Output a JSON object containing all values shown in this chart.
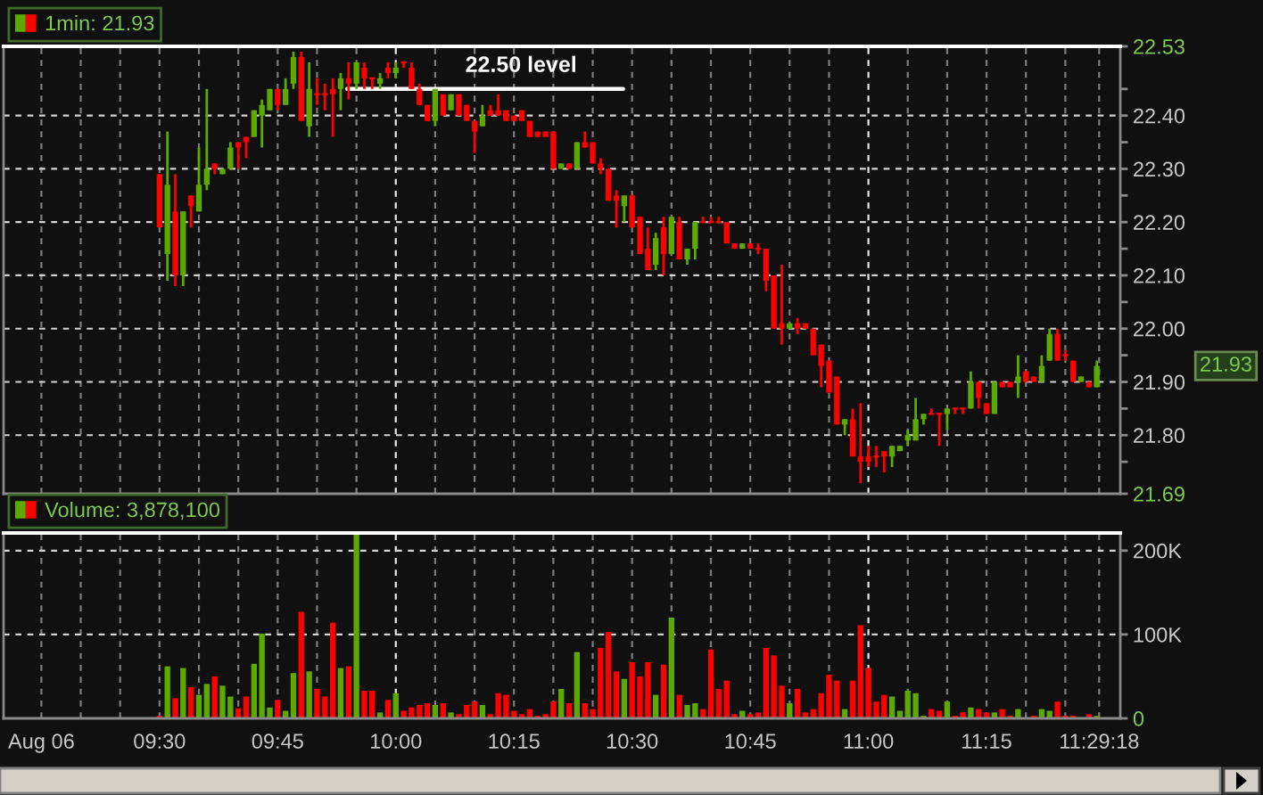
{
  "chart_data": [
    {
      "type": "candlestick",
      "x": [
        9.5,
        9.5167,
        9.5333,
        9.55,
        9.5667,
        9.5833,
        9.6,
        9.6167,
        9.6333,
        9.65,
        9.6667,
        9.6833,
        9.7,
        9.7167,
        9.7333,
        9.75,
        9.7667,
        9.7833,
        9.8,
        9.8167,
        9.8333,
        9.85,
        9.8667,
        9.8833,
        9.9,
        9.9167,
        9.9333,
        9.95,
        9.9667,
        9.9833,
        10,
        10.0167,
        10.0333,
        10.05,
        10.0667,
        10.0833,
        10.1,
        10.1167,
        10.1333,
        10.15,
        10.1667,
        10.1833,
        10.2,
        10.2167,
        10.2333,
        10.25,
        10.2667,
        10.2833,
        10.3,
        10.3167,
        10.3333,
        10.35,
        10.3667,
        10.3833,
        10.4,
        10.4167,
        10.4333,
        10.45,
        10.4667,
        10.4833,
        10.5,
        10.5167,
        10.5333,
        10.55,
        10.5667,
        10.5833,
        10.6,
        10.6167,
        10.6333,
        10.65,
        10.6667,
        10.6833,
        10.7,
        10.7167,
        10.7333,
        10.75,
        10.7667,
        10.7833,
        10.8,
        10.8167,
        10.8333,
        10.85,
        10.8667,
        10.8833,
        10.9,
        10.9167,
        10.9333,
        10.95,
        10.9667,
        10.9833,
        11,
        11.0167,
        11.0333,
        11.05,
        11.0667,
        11.0833,
        11.1,
        11.1167,
        11.1333,
        11.15,
        11.1667,
        11.1833,
        11.2,
        11.2167,
        11.2333,
        11.25,
        11.2667,
        11.2833,
        11.3,
        11.3167,
        11.3333,
        11.35,
        11.3667,
        11.3833,
        11.4,
        11.4167,
        11.4333,
        11.45,
        11.4667,
        11.4833
      ],
      "series": [
        {
          "name": "1min: 21.93",
          "type": "candlestick",
          "ohlc": [
            [
              22.29,
              22.29,
              22.19,
              22.19
            ],
            [
              22.14,
              22.37,
              22.09,
              22.27
            ],
            [
              22.22,
              22.29,
              22.08,
              22.1
            ],
            [
              22.1,
              22.22,
              22.08,
              22.22
            ],
            [
              22.25,
              22.25,
              22.19,
              22.23
            ],
            [
              22.22,
              22.34,
              22.22,
              22.27
            ],
            [
              22.27,
              22.45,
              22.26,
              22.3
            ],
            [
              22.31,
              22.31,
              22.29,
              22.3
            ],
            [
              22.29,
              22.3,
              22.29,
              22.3
            ],
            [
              22.3,
              22.35,
              22.3,
              22.34
            ],
            [
              22.35,
              22.35,
              22.3,
              22.34
            ],
            [
              22.36,
              22.36,
              22.32,
              22.35
            ],
            [
              22.36,
              22.41,
              22.36,
              22.41
            ],
            [
              22.4,
              22.43,
              22.34,
              22.42
            ],
            [
              22.41,
              22.45,
              22.41,
              22.45
            ],
            [
              22.45,
              22.45,
              22.41,
              22.42
            ],
            [
              22.42,
              22.47,
              22.42,
              22.45
            ],
            [
              22.46,
              22.52,
              22.45,
              22.51
            ],
            [
              22.51,
              22.52,
              22.39,
              22.39
            ],
            [
              22.38,
              22.5,
              22.36,
              22.45
            ],
            [
              22.44,
              22.47,
              22.42,
              22.44
            ],
            [
              22.44,
              22.46,
              22.41,
              22.44
            ],
            [
              22.45,
              22.47,
              22.36,
              22.44
            ],
            [
              22.45,
              22.48,
              22.41,
              22.47
            ],
            [
              22.47,
              22.5,
              22.43,
              22.46
            ],
            [
              22.46,
              22.5,
              22.45,
              22.5
            ],
            [
              22.49,
              22.5,
              22.45,
              22.47
            ],
            [
              22.47,
              22.47,
              22.45,
              22.47
            ],
            [
              22.46,
              22.48,
              22.45,
              22.47
            ],
            [
              22.49,
              22.5,
              22.47,
              22.48
            ],
            [
              22.48,
              22.5,
              22.47,
              22.49
            ],
            [
              22.5,
              22.5,
              22.49,
              22.5
            ],
            [
              22.49,
              22.5,
              22.45,
              22.45
            ],
            [
              22.45,
              22.46,
              22.42,
              22.42
            ],
            [
              22.42,
              22.42,
              22.39,
              22.39
            ],
            [
              22.39,
              22.45,
              22.38,
              22.45
            ],
            [
              22.44,
              22.44,
              22.4,
              22.4
            ],
            [
              22.41,
              22.44,
              22.41,
              22.44
            ],
            [
              22.44,
              22.44,
              22.4,
              22.4
            ],
            [
              22.42,
              22.42,
              22.39,
              22.39
            ],
            [
              22.39,
              22.39,
              22.33,
              22.37
            ],
            [
              22.38,
              22.42,
              22.38,
              22.4
            ],
            [
              22.41,
              22.42,
              22.4,
              22.4
            ],
            [
              22.41,
              22.44,
              22.4,
              22.4
            ],
            [
              22.41,
              22.41,
              22.39,
              22.39
            ],
            [
              22.4,
              22.4,
              22.39,
              22.39
            ],
            [
              22.41,
              22.41,
              22.39,
              22.39
            ],
            [
              22.39,
              22.39,
              22.36,
              22.36
            ],
            [
              22.37,
              22.37,
              22.36,
              22.36
            ],
            [
              22.37,
              22.37,
              22.36,
              22.36
            ],
            [
              22.37,
              22.37,
              22.3,
              22.3
            ],
            [
              22.3,
              22.31,
              22.3,
              22.31
            ],
            [
              22.31,
              22.31,
              22.3,
              22.3
            ],
            [
              22.3,
              22.35,
              22.3,
              22.35
            ],
            [
              22.35,
              22.37,
              22.34,
              22.34
            ],
            [
              22.35,
              22.35,
              22.31,
              22.31
            ],
            [
              22.31,
              22.32,
              22.29,
              22.3
            ],
            [
              22.3,
              22.3,
              22.24,
              22.24
            ],
            [
              22.25,
              22.26,
              22.19,
              22.24
            ],
            [
              22.23,
              22.25,
              22.2,
              22.25
            ],
            [
              22.25,
              22.25,
              22.19,
              22.19
            ],
            [
              22.21,
              22.21,
              22.14,
              22.14
            ],
            [
              22.15,
              22.19,
              22.11,
              22.11
            ],
            [
              22.12,
              22.18,
              22.11,
              22.17
            ],
            [
              22.19,
              22.21,
              22.1,
              22.14
            ],
            [
              22.14,
              22.21,
              22.14,
              22.21
            ],
            [
              22.2,
              22.21,
              22.13,
              22.13
            ],
            [
              22.13,
              22.15,
              22.12,
              22.15
            ],
            [
              22.15,
              22.2,
              22.13,
              22.2
            ],
            [
              22.2,
              22.21,
              22.2,
              22.2
            ],
            [
              22.2,
              22.21,
              22.2,
              22.2
            ],
            [
              22.2,
              22.21,
              22.2,
              22.2
            ],
            [
              22.2,
              22.2,
              22.16,
              22.16
            ],
            [
              22.16,
              22.16,
              22.15,
              22.15
            ],
            [
              22.15,
              22.16,
              22.15,
              22.16
            ],
            [
              22.16,
              22.16,
              22.15,
              22.15
            ],
            [
              22.15,
              22.16,
              22.14,
              22.15
            ],
            [
              22.15,
              22.15,
              22.07,
              22.09
            ],
            [
              22.1,
              22.1,
              22.0,
              22.0
            ],
            [
              22.01,
              22.12,
              21.97,
              22.0
            ],
            [
              22.0,
              22.01,
              22.0,
              22.01
            ],
            [
              22.01,
              22.02,
              21.99,
              22.0
            ],
            [
              22.01,
              22.01,
              22.0,
              22.0
            ],
            [
              22.0,
              22.0,
              21.95,
              21.95
            ],
            [
              21.97,
              21.97,
              21.89,
              21.93
            ],
            [
              21.94,
              21.94,
              21.88,
              21.88
            ],
            [
              21.91,
              21.91,
              21.82,
              21.82
            ],
            [
              21.82,
              21.83,
              21.8,
              21.83
            ],
            [
              21.83,
              21.85,
              21.76,
              21.76
            ],
            [
              21.76,
              21.86,
              21.71,
              21.75
            ],
            [
              21.76,
              21.78,
              21.74,
              21.75
            ],
            [
              21.76,
              21.78,
              21.74,
              21.76
            ],
            [
              21.77,
              21.77,
              21.73,
              21.76
            ],
            [
              21.76,
              21.78,
              21.74,
              21.78
            ],
            [
              21.77,
              21.78,
              21.77,
              21.78
            ],
            [
              21.79,
              21.81,
              21.78,
              21.8
            ],
            [
              21.79,
              21.87,
              21.79,
              21.83
            ],
            [
              21.83,
              21.84,
              21.82,
              21.84
            ],
            [
              21.84,
              21.85,
              21.84,
              21.84
            ],
            [
              21.84,
              21.84,
              21.78,
              21.84
            ],
            [
              21.84,
              21.85,
              21.81,
              21.85
            ],
            [
              21.85,
              21.85,
              21.84,
              21.85
            ],
            [
              21.85,
              21.85,
              21.84,
              21.85
            ],
            [
              21.85,
              21.92,
              21.85,
              21.9
            ],
            [
              21.9,
              21.9,
              21.85,
              21.87
            ],
            [
              21.86,
              21.86,
              21.84,
              21.84
            ],
            [
              21.84,
              21.9,
              21.84,
              21.9
            ],
            [
              21.9,
              21.9,
              21.89,
              21.89
            ],
            [
              21.9,
              21.9,
              21.89,
              21.89
            ],
            [
              21.9,
              21.95,
              21.87,
              21.91
            ],
            [
              21.92,
              21.92,
              21.9,
              21.9
            ],
            [
              21.91,
              21.91,
              21.9,
              21.9
            ],
            [
              21.9,
              21.95,
              21.9,
              21.93
            ],
            [
              21.94,
              22.0,
              21.94,
              21.99
            ],
            [
              21.99,
              22.0,
              21.94,
              21.94
            ],
            [
              21.95,
              21.96,
              21.94,
              21.95
            ],
            [
              21.94,
              21.94,
              21.9,
              21.9
            ],
            [
              21.9,
              21.91,
              21.9,
              21.91
            ],
            [
              21.9,
              21.9,
              21.89,
              21.89
            ],
            [
              21.89,
              21.94,
              21.89,
              21.93
            ]
          ],
          "colors": [
            "#ff0000",
            "#5caa00",
            "#ff0000",
            "#5caa00",
            "#ff0000",
            "#5caa00",
            "#5caa00",
            "#ff0000",
            "#5caa00",
            "#5caa00",
            "#ff0000",
            "#ff0000",
            "#5caa00",
            "#5caa00",
            "#5caa00",
            "#ff0000",
            "#5caa00",
            "#5caa00",
            "#ff0000",
            "#5caa00",
            "#ff0000",
            "#ff0000",
            "#ff0000",
            "#5caa00",
            "#ff0000",
            "#5caa00",
            "#ff0000",
            "#ff0000",
            "#5caa00",
            "#ff0000",
            "#5caa00",
            "#ff0000",
            "#ff0000",
            "#ff0000",
            "#ff0000",
            "#5caa00",
            "#ff0000",
            "#5caa00",
            "#ff0000",
            "#ff0000",
            "#ff0000",
            "#5caa00",
            "#ff0000",
            "#ff0000",
            "#ff0000",
            "#ff0000",
            "#ff0000",
            "#ff0000",
            "#ff0000",
            "#ff0000",
            "#ff0000",
            "#5caa00",
            "#ff0000",
            "#5caa00",
            "#ff0000",
            "#ff0000",
            "#ff0000",
            "#ff0000",
            "#ff0000",
            "#5caa00",
            "#ff0000",
            "#ff0000",
            "#ff0000",
            "#5caa00",
            "#ff0000",
            "#5caa00",
            "#ff0000",
            "#5caa00",
            "#5caa00",
            "#ff0000",
            "#ff0000",
            "#ff0000",
            "#ff0000",
            "#ff0000",
            "#5caa00",
            "#ff0000",
            "#ff0000",
            "#ff0000",
            "#ff0000",
            "#ff0000",
            "#5caa00",
            "#ff0000",
            "#ff0000",
            "#ff0000",
            "#ff0000",
            "#ff0000",
            "#ff0000",
            "#5caa00",
            "#ff0000",
            "#ff0000",
            "#ff0000",
            "#ff0000",
            "#ff0000",
            "#5caa00",
            "#5caa00",
            "#5caa00",
            "#5caa00",
            "#5caa00",
            "#ff0000",
            "#ff0000",
            "#5caa00",
            "#ff0000",
            "#ff0000",
            "#5caa00",
            "#ff0000",
            "#ff0000",
            "#5caa00",
            "#ff0000",
            "#ff0000",
            "#5caa00",
            "#ff0000",
            "#ff0000",
            "#5caa00",
            "#5caa00",
            "#ff0000",
            "#ff0000",
            "#ff0000",
            "#5caa00",
            "#ff0000",
            "#5caa00"
          ]
        },
        {
          "type": "line",
          "x": [
            9.897,
            10.481
          ],
          "values": [
            22.45,
            22.45
          ],
          "color": "#ffffff"
        }
      ],
      "xlim": [
        9.17,
        11.533
      ],
      "ylim": [
        21.69,
        22.53
      ],
      "xticks": [
        {
          "value": 9.25,
          "label": null
        },
        {
          "value": 9.3333,
          "label": null
        },
        {
          "value": 9.4167,
          "label": null
        },
        {
          "value": 9.5,
          "label": null
        },
        {
          "value": 9.5833,
          "label": null
        },
        {
          "value": 9.6667,
          "label": null
        },
        {
          "value": 9.75,
          "label": null
        },
        {
          "value": 9.8333,
          "label": null
        },
        {
          "value": 9.9167,
          "label": null
        },
        {
          "value": 10,
          "label": null
        },
        {
          "value": 10.0833,
          "label": null
        },
        {
          "value": 10.1667,
          "label": null
        },
        {
          "value": 10.25,
          "label": null
        },
        {
          "value": 10.3333,
          "label": null
        },
        {
          "value": 10.4167,
          "label": null
        },
        {
          "value": 10.5,
          "label": null
        },
        {
          "value": 10.5833,
          "label": null
        },
        {
          "value": 10.6667,
          "label": null
        },
        {
          "value": 10.75,
          "label": null
        },
        {
          "value": 10.8333,
          "label": null
        },
        {
          "value": 10.9167,
          "label": null
        },
        {
          "value": 11,
          "label": null
        },
        {
          "value": 11.0833,
          "label": null
        },
        {
          "value": 11.1667,
          "label": null
        },
        {
          "value": 11.25,
          "label": null
        },
        {
          "value": 11.3333,
          "label": null
        },
        {
          "value": 11.4167,
          "label": null
        },
        {
          "value": 11.4883,
          "label": null
        }
      ],
      "yticks": [
        22.53,
        {
          "value": 22.45,
          "label": null
        },
        {
          "value": 22.4,
          "label": "22.40"
        },
        {
          "value": 22.35,
          "label": null
        },
        {
          "value": 22.3,
          "label": "22.30"
        },
        {
          "value": 22.25,
          "label": null
        },
        {
          "value": 22.2,
          "label": "22.20"
        },
        {
          "value": 22.15,
          "label": null
        },
        {
          "value": 22.1,
          "label": "22.10"
        },
        {
          "value": 22.05,
          "label": null
        },
        {
          "value": 22.0,
          "label": "22.00"
        },
        {
          "value": 21.95,
          "label": null
        },
        {
          "value": 21.9,
          "label": "21.90"
        },
        {
          "value": 21.85,
          "label": null
        },
        {
          "value": 21.8,
          "label": "21.80"
        },
        {
          "value": 21.75,
          "label": null
        },
        21.69
      ],
      "tick_labels": "y",
      "grid": true,
      "legend": "top left",
      "annotations": [
        {
          "text": "22.50 level",
          "x": 10.265,
          "y": 22.45
        },
        "21.93"
      ]
    },
    {
      "type": "bar",
      "x": [
        9.5,
        9.5167,
        9.5333,
        9.55,
        9.5667,
        9.5833,
        9.6,
        9.6167,
        9.6333,
        9.65,
        9.6667,
        9.6833,
        9.7,
        9.7167,
        9.7333,
        9.75,
        9.7667,
        9.7833,
        9.8,
        9.8167,
        9.8333,
        9.85,
        9.8667,
        9.8833,
        9.9,
        9.9167,
        9.9333,
        9.95,
        9.9667,
        9.9833,
        10,
        10.0167,
        10.0333,
        10.05,
        10.0667,
        10.0833,
        10.1,
        10.1167,
        10.1333,
        10.15,
        10.1667,
        10.1833,
        10.2,
        10.2167,
        10.2333,
        10.25,
        10.2667,
        10.2833,
        10.3,
        10.3167,
        10.3333,
        10.35,
        10.3667,
        10.3833,
        10.4,
        10.4167,
        10.4333,
        10.45,
        10.4667,
        10.4833,
        10.5,
        10.5167,
        10.5333,
        10.55,
        10.5667,
        10.5833,
        10.6,
        10.6167,
        10.6333,
        10.65,
        10.6667,
        10.6833,
        10.7,
        10.7167,
        10.7333,
        10.75,
        10.7667,
        10.7833,
        10.8,
        10.8167,
        10.8333,
        10.85,
        10.8667,
        10.8833,
        10.9,
        10.9167,
        10.9333,
        10.95,
        10.9667,
        10.9833,
        11,
        11.0167,
        11.0333,
        11.05,
        11.0667,
        11.0833,
        11.1,
        11.1167,
        11.1333,
        11.15,
        11.1667,
        11.1833,
        11.2,
        11.2167,
        11.2333,
        11.25,
        11.2667,
        11.2833,
        11.3,
        11.3167,
        11.3333,
        11.35,
        11.3667,
        11.3833,
        11.4,
        11.4167,
        11.4333,
        11.45,
        11.4667,
        11.4833
      ],
      "series": [
        {
          "name": "Volume: 3,878,100",
          "values": [
            3000,
            62000,
            24000,
            60000,
            37000,
            28000,
            41000,
            50000,
            39000,
            26000,
            12000,
            26000,
            65000,
            101000,
            13000,
            22000,
            9000,
            54000,
            127000,
            56000,
            35000,
            26000,
            114000,
            60000,
            62000,
            221000,
            33000,
            33000,
            7000,
            22000,
            30000,
            9000,
            13000,
            16000,
            18000,
            16000,
            18000,
            7000,
            5000,
            16000,
            20000,
            16000,
            5000,
            30000,
            28000,
            9000,
            5000,
            11000,
            3000,
            5000,
            20000,
            35000,
            18000,
            79000,
            18000,
            11000,
            84000,
            103000,
            56000,
            47000,
            67000,
            50000,
            67000,
            28000,
            64000,
            120000,
            28000,
            16000,
            18000,
            11000,
            82000,
            35000,
            45000,
            5000,
            9000,
            5000,
            7000,
            84000,
            75000,
            39000,
            18000,
            35000,
            7000,
            11000,
            30000,
            52000,
            45000,
            11000,
            45000,
            111000,
            60000,
            20000,
            28000,
            26000,
            9000,
            33000,
            30000,
            3000,
            11000,
            9000,
            20000,
            3000,
            7000,
            13000,
            11000,
            7000,
            7000,
            11000,
            3000,
            11000,
            1000,
            3000,
            11000,
            9000,
            20000,
            3000,
            3000,
            1000,
            5000,
            3000
          ],
          "colors": [
            "#ff0000",
            "#5caa00",
            "#ff0000",
            "#5caa00",
            "#ff0000",
            "#5caa00",
            "#5caa00",
            "#ff0000",
            "#5caa00",
            "#5caa00",
            "#ff0000",
            "#ff0000",
            "#5caa00",
            "#5caa00",
            "#5caa00",
            "#ff0000",
            "#5caa00",
            "#5caa00",
            "#ff0000",
            "#5caa00",
            "#ff0000",
            "#ff0000",
            "#ff0000",
            "#5caa00",
            "#ff0000",
            "#5caa00",
            "#ff0000",
            "#ff0000",
            "#5caa00",
            "#ff0000",
            "#5caa00",
            "#ff0000",
            "#ff0000",
            "#ff0000",
            "#ff0000",
            "#5caa00",
            "#ff0000",
            "#5caa00",
            "#ff0000",
            "#ff0000",
            "#ff0000",
            "#5caa00",
            "#ff0000",
            "#ff0000",
            "#ff0000",
            "#ff0000",
            "#ff0000",
            "#ff0000",
            "#ff0000",
            "#ff0000",
            "#ff0000",
            "#5caa00",
            "#ff0000",
            "#5caa00",
            "#ff0000",
            "#ff0000",
            "#ff0000",
            "#ff0000",
            "#ff0000",
            "#5caa00",
            "#ff0000",
            "#ff0000",
            "#ff0000",
            "#5caa00",
            "#ff0000",
            "#5caa00",
            "#ff0000",
            "#5caa00",
            "#5caa00",
            "#ff0000",
            "#ff0000",
            "#ff0000",
            "#ff0000",
            "#ff0000",
            "#5caa00",
            "#ff0000",
            "#ff0000",
            "#ff0000",
            "#ff0000",
            "#ff0000",
            "#5caa00",
            "#ff0000",
            "#ff0000",
            "#ff0000",
            "#ff0000",
            "#ff0000",
            "#ff0000",
            "#5caa00",
            "#ff0000",
            "#ff0000",
            "#ff0000",
            "#ff0000",
            "#ff0000",
            "#5caa00",
            "#5caa00",
            "#5caa00",
            "#5caa00",
            "#5caa00",
            "#ff0000",
            "#ff0000",
            "#5caa00",
            "#ff0000",
            "#ff0000",
            "#5caa00",
            "#ff0000",
            "#ff0000",
            "#5caa00",
            "#ff0000",
            "#ff0000",
            "#5caa00",
            "#ff0000",
            "#ff0000",
            "#5caa00",
            "#5caa00",
            "#ff0000",
            "#ff0000",
            "#ff0000",
            "#5caa00",
            "#ff0000",
            "#5caa00"
          ]
        }
      ],
      "xlim": [
        9.17,
        11.533
      ],
      "ylim": [
        0,
        221000
      ],
      "xticks": [
        {
          "value": 9.25,
          "label": "Aug 06"
        },
        {
          "value": 9.3333,
          "label": null
        },
        {
          "value": 9.4167,
          "label": null
        },
        {
          "value": 9.5,
          "label": "09:30"
        },
        {
          "value": 9.5833,
          "label": null
        },
        {
          "value": 9.6667,
          "label": null
        },
        {
          "value": 9.75,
          "label": "09:45"
        },
        {
          "value": 9.8333,
          "label": null
        },
        {
          "value": 10,
          "label": "10:00"
        },
        {
          "value": 10.0833,
          "label": null
        },
        {
          "value": 10.1667,
          "label": null
        },
        {
          "value": 10.25,
          "label": "10:15"
        },
        {
          "value": 10.3333,
          "label": null
        },
        {
          "value": 10.4167,
          "label": null
        },
        {
          "value": 10.5,
          "label": "10:30"
        },
        {
          "value": 10.5833,
          "label": null
        },
        {
          "value": 10.6667,
          "label": null
        },
        {
          "value": 10.75,
          "label": "10:45"
        },
        {
          "value": 10.8333,
          "label": null
        },
        {
          "value": 10.9167,
          "label": null
        },
        {
          "value": 11,
          "label": "11:00"
        },
        {
          "value": 11.0833,
          "label": null
        },
        {
          "value": 11.1667,
          "label": null
        },
        {
          "value": 11.25,
          "label": "11:15"
        },
        {
          "value": 11.3333,
          "label": null
        },
        {
          "value": 11.4167,
          "label": null
        },
        {
          "value": 11.4883,
          "label": "11:29:18"
        }
      ],
      "yticks": [
        {
          "value": 200000,
          "label": "200K"
        },
        {
          "value": 100000,
          "label": "100K"
        },
        0
      ],
      "grid": true,
      "legend": "top left"
    }
  ]
}
